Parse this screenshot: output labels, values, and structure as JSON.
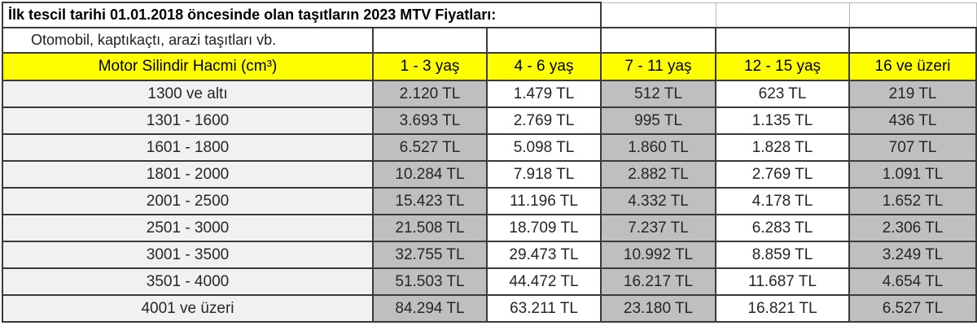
{
  "chart_data": {
    "type": "table",
    "title": "İlk tescil tarihi 01.01.2018 öncesinde olan taşıtların 2023 MTV Fiyatları:",
    "subtitle": "Otomobil, kaptıkaçtı, arazi taşıtları vb.",
    "columns": [
      "Motor Silindir Hacmi (cm³)",
      "1 - 3 yaş",
      "4 - 6 yaş",
      "7 - 11 yaş",
      "12 - 15 yaş",
      "16 ve üzeri"
    ],
    "rows": [
      [
        "1300 ve altı",
        "2.120 TL",
        "1.479 TL",
        "512 TL",
        "623 TL",
        "219 TL"
      ],
      [
        "1301 - 1600",
        "3.693 TL",
        "2.769 TL",
        "995 TL",
        "1.135 TL",
        "436 TL"
      ],
      [
        "1601 - 1800",
        "6.527 TL",
        "5.098 TL",
        "1.860 TL",
        "1.828 TL",
        "707 TL"
      ],
      [
        "1801 - 2000",
        "10.284 TL",
        "7.918 TL",
        "2.882 TL",
        "2.769 TL",
        "1.091 TL"
      ],
      [
        "2001 - 2500",
        "15.423 TL",
        "11.196 TL",
        "4.332 TL",
        "4.178 TL",
        "1.652 TL"
      ],
      [
        "2501 - 3000",
        "21.508 TL",
        "18.709 TL",
        "7.237 TL",
        "6.283 TL",
        "2.306 TL"
      ],
      [
        "3001 - 3500",
        "32.755 TL",
        "29.473 TL",
        "10.992 TL",
        "8.859 TL",
        "3.249 TL"
      ],
      [
        "3501 - 4000",
        "51.503 TL",
        "44.472 TL",
        "16.217 TL",
        "11.687 TL",
        "4.654 TL"
      ],
      [
        "4001 ve üzeri",
        "84.294 TL",
        "63.211 TL",
        "23.180 TL",
        "16.821 TL",
        "6.527 TL"
      ]
    ],
    "shaded_columns": [
      1,
      3,
      5
    ],
    "colors": {
      "header_bg": "#ffff00",
      "shaded_col_bg": "#bfbfbf",
      "label_col_bg": "#f1f1f1",
      "white_col_bg": "#ffffff",
      "border": "#3a3a3a",
      "text": "#1f1f1f"
    },
    "layout": {
      "grid": "full-borders",
      "currency_suffix": "TL"
    }
  }
}
